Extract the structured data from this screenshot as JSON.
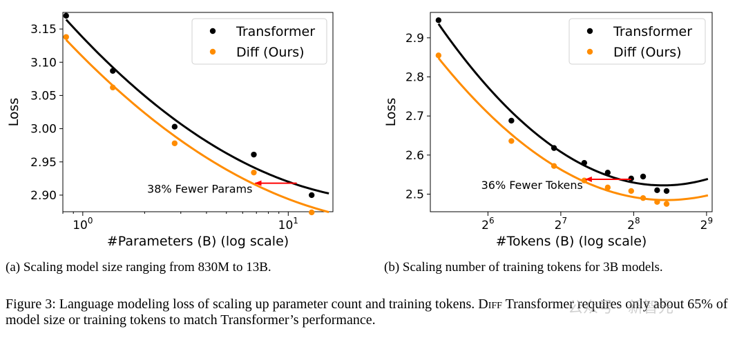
{
  "colors": {
    "transformer": "#000000",
    "diff": "#ff8c00",
    "arrow": "#ff0000"
  },
  "legend": {
    "transformer": "Transformer",
    "diff": "Diff (Ours)"
  },
  "chart_data": [
    {
      "type": "scatter",
      "xlabel": "#Parameters (B) (log scale)",
      "ylabel": "Loss",
      "xscale": "log10",
      "xlim": [
        0.8,
        16.5
      ],
      "ylim": [
        2.875,
        3.175
      ],
      "xticks": [
        {
          "value": 1,
          "base": "10",
          "exp": "0"
        },
        {
          "value": 10,
          "base": "10",
          "exp": "1"
        }
      ],
      "yticks": [
        2.9,
        2.95,
        3.0,
        3.05,
        3.1,
        3.15
      ],
      "ytick_labels": [
        "2.90",
        "2.95",
        "3.00",
        "3.05",
        "3.10",
        "3.15"
      ],
      "series": [
        {
          "name": "Transformer",
          "x": [
            0.83,
            1.4,
            2.8,
            6.8,
            13
          ],
          "y": [
            3.17,
            3.087,
            3.003,
            2.961,
            2.9
          ]
        },
        {
          "name": "Diff (Ours)",
          "x": [
            0.83,
            1.4,
            2.8,
            6.8,
            13
          ],
          "y": [
            3.138,
            3.062,
            2.978,
            2.934,
            2.874
          ]
        }
      ],
      "fit_lines": true,
      "annotation": {
        "text": "38% Fewer Params",
        "arrow_from": [
          11.0,
          2.918
        ],
        "arrow_to": [
          6.8,
          2.918
        ]
      },
      "legend_position": "top-right",
      "grid": false
    },
    {
      "type": "scatter",
      "xlabel": "#Tokens (B) (log scale)",
      "ylabel": "Loss",
      "xscale": "log2",
      "xlim": [
        37,
        540
      ],
      "ylim": [
        2.455,
        2.965
      ],
      "xticks": [
        {
          "value": 64,
          "base": "2",
          "exp": "6"
        },
        {
          "value": 128,
          "base": "2",
          "exp": "7"
        },
        {
          "value": 256,
          "base": "2",
          "exp": "8"
        },
        {
          "value": 512,
          "base": "2",
          "exp": "9"
        }
      ],
      "yticks": [
        2.5,
        2.6,
        2.7,
        2.8,
        2.9
      ],
      "ytick_labels": [
        "2.5",
        "2.6",
        "2.7",
        "2.8",
        "2.9"
      ],
      "series": [
        {
          "name": "Transformer",
          "x": [
            40,
            80,
            120,
            160,
            200,
            250,
            280,
            320,
            350
          ],
          "y": [
            2.945,
            2.688,
            2.618,
            2.58,
            2.555,
            2.54,
            2.545,
            2.51,
            2.508
          ]
        },
        {
          "name": "Diff (Ours)",
          "x": [
            40,
            80,
            120,
            160,
            200,
            250,
            280,
            320,
            350
          ],
          "y": [
            2.855,
            2.636,
            2.572,
            2.535,
            2.517,
            2.508,
            2.49,
            2.48,
            2.475
          ]
        }
      ],
      "fit_lines": true,
      "annotation": {
        "text": "36% Fewer Tokens",
        "arrow_from": [
          250,
          2.538
        ],
        "arrow_to": [
          160,
          2.538
        ]
      },
      "legend_position": "top-right",
      "grid": false
    }
  ],
  "captions": {
    "a": "(a) Scaling model size ranging from 830M to 13B.",
    "b": "(b) Scaling number of training tokens for 3B models.",
    "figure_pre": "Figure 3: Language modeling loss of scaling up parameter count and training tokens. ",
    "figure_diff": "Diff",
    "figure_post": " Transformer requires only about 65% of model size or training tokens to match Transformer’s performance."
  },
  "watermark": "公众号 · 新智元"
}
